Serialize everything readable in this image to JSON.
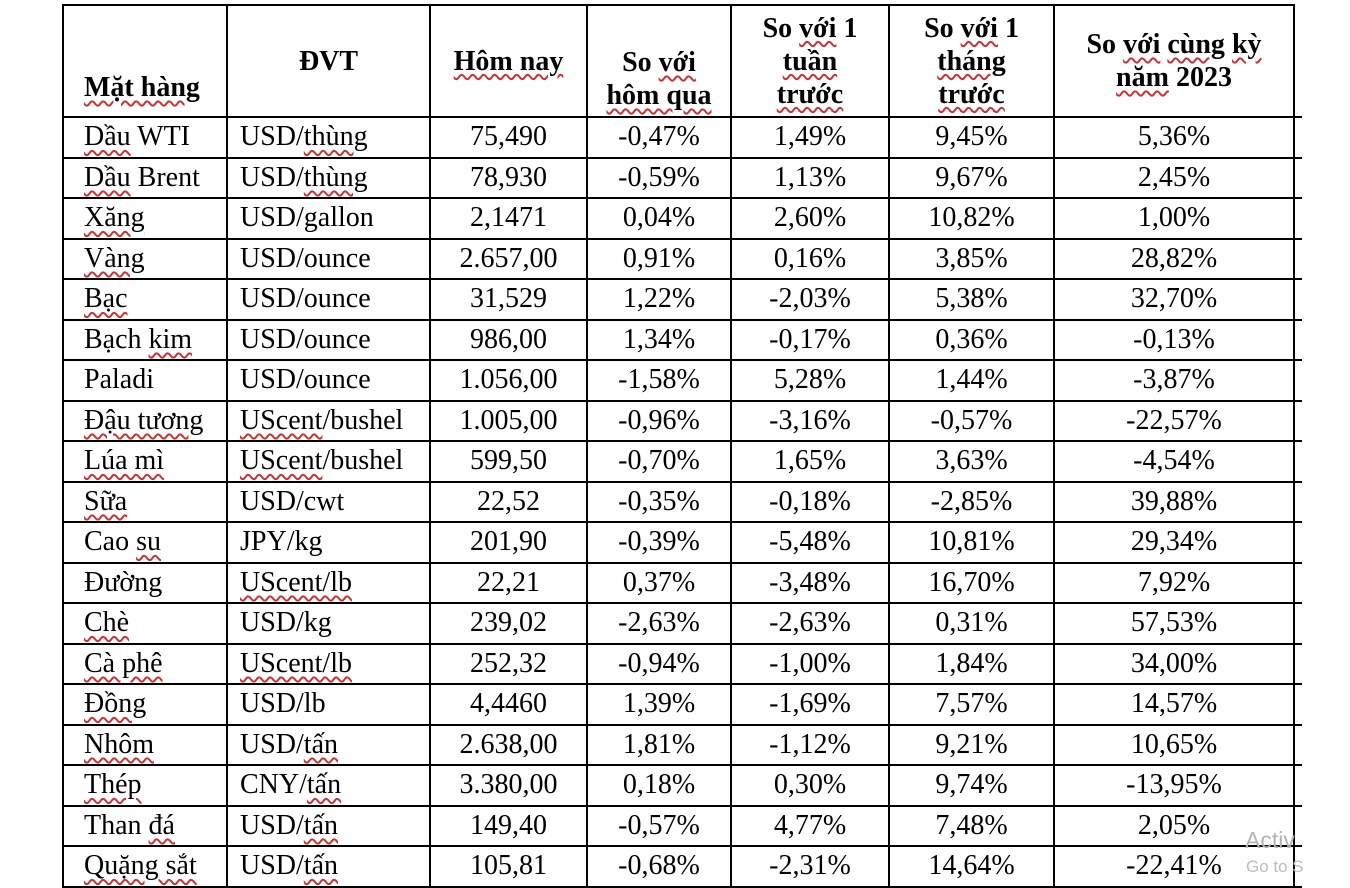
{
  "table": {
    "headers": [
      {
        "lines": [
          "Mặt hàng"
        ],
        "sq": [
          "Mặt hàng"
        ]
      },
      {
        "lines": [
          "ĐVT"
        ],
        "sq": []
      },
      {
        "lines": [
          "Hôm nay"
        ],
        "sq": [
          "Hôm nay"
        ]
      },
      {
        "lines": [
          "So với",
          "hôm qua"
        ],
        "sq": [
          "với",
          "hôm qua"
        ]
      },
      {
        "lines": [
          "So với 1",
          "tuần",
          "trước"
        ],
        "sq": [
          "với",
          "tuần",
          "trước"
        ]
      },
      {
        "lines": [
          "So với 1",
          "tháng",
          "trước"
        ],
        "sq": [
          "với",
          "tháng",
          "trước"
        ]
      },
      {
        "lines": [
          "So với cùng kỳ",
          "năm 2023"
        ],
        "sq": [
          "với",
          "cùng",
          "kỳ",
          "năm"
        ]
      }
    ],
    "rows": [
      {
        "name": {
          "text": "Dầu WTI",
          "sq": [
            "Dầu"
          ]
        },
        "unit": {
          "text": "USD/thùng",
          "sq": [
            "thùng"
          ]
        },
        "values": [
          "75,490",
          "-0,47%",
          "1,49%",
          "9,45%",
          "5,36%"
        ]
      },
      {
        "name": {
          "text": "Dầu Brent",
          "sq": [
            "Dầu"
          ]
        },
        "unit": {
          "text": "USD/thùng",
          "sq": [
            "thùng"
          ]
        },
        "values": [
          "78,930",
          "-0,59%",
          "1,13%",
          "9,67%",
          "2,45%"
        ]
      },
      {
        "name": {
          "text": "Xăng",
          "sq": [
            "Xăng"
          ]
        },
        "unit": {
          "text": "USD/gallon",
          "sq": []
        },
        "values": [
          "2,1471",
          "0,04%",
          "2,60%",
          "10,82%",
          "1,00%"
        ]
      },
      {
        "name": {
          "text": "Vàng",
          "sq": [
            "Vàng"
          ]
        },
        "unit": {
          "text": "USD/ounce",
          "sq": []
        },
        "values": [
          "2.657,00",
          "0,91%",
          "0,16%",
          "3,85%",
          "28,82%"
        ]
      },
      {
        "name": {
          "text": "Bạc",
          "sq": [
            "Bạc"
          ]
        },
        "unit": {
          "text": "USD/ounce",
          "sq": []
        },
        "values": [
          "31,529",
          "1,22%",
          "-2,03%",
          "5,38%",
          "32,70%"
        ]
      },
      {
        "name": {
          "text": "Bạch kim",
          "sq": [
            "kim"
          ]
        },
        "unit": {
          "text": "USD/ounce",
          "sq": []
        },
        "values": [
          "986,00",
          "1,34%",
          "-0,17%",
          "0,36%",
          "-0,13%"
        ]
      },
      {
        "name": {
          "text": "Paladi",
          "sq": []
        },
        "unit": {
          "text": "USD/ounce",
          "sq": []
        },
        "values": [
          "1.056,00",
          "-1,58%",
          "5,28%",
          "1,44%",
          "-3,87%"
        ]
      },
      {
        "name": {
          "text": "Đậu tương",
          "sq": [
            "Đậu tương"
          ]
        },
        "unit": {
          "text": "UScent/bushel",
          "sq": [
            "UScent"
          ]
        },
        "values": [
          "1.005,00",
          "-0,96%",
          "-3,16%",
          "-0,57%",
          "-22,57%"
        ]
      },
      {
        "name": {
          "text": "Lúa mì",
          "sq": [
            "Lúa mì"
          ]
        },
        "unit": {
          "text": "UScent/bushel",
          "sq": [
            "UScent"
          ]
        },
        "values": [
          "599,50",
          "-0,70%",
          "1,65%",
          "3,63%",
          "-4,54%"
        ]
      },
      {
        "name": {
          "text": "Sữa",
          "sq": [
            "Sữa"
          ]
        },
        "unit": {
          "text": "USD/cwt",
          "sq": []
        },
        "values": [
          "22,52",
          "-0,35%",
          "-0,18%",
          "-2,85%",
          "39,88%"
        ]
      },
      {
        "name": {
          "text": "Cao su",
          "sq": [
            "su"
          ]
        },
        "unit": {
          "text": "JPY/kg",
          "sq": []
        },
        "values": [
          "201,90",
          "-0,39%",
          "-5,48%",
          "10,81%",
          "29,34%"
        ]
      },
      {
        "name": {
          "text": "Đường",
          "sq": []
        },
        "unit": {
          "text": "UScent/lb",
          "sq": [
            "UScent/lb"
          ]
        },
        "values": [
          "22,21",
          "0,37%",
          "-3,48%",
          "16,70%",
          "7,92%"
        ]
      },
      {
        "name": {
          "text": "Chè",
          "sq": [
            "Chè"
          ]
        },
        "unit": {
          "text": "USD/kg",
          "sq": []
        },
        "values": [
          "239,02",
          "-2,63%",
          "-2,63%",
          "0,31%",
          "57,53%"
        ]
      },
      {
        "name": {
          "text": "Cà phê",
          "sq": [
            "Cà phê"
          ]
        },
        "unit": {
          "text": "UScent/lb",
          "sq": [
            "UScent/lb"
          ]
        },
        "values": [
          "252,32",
          "-0,94%",
          "-1,00%",
          "1,84%",
          "34,00%"
        ]
      },
      {
        "name": {
          "text": "Đồng",
          "sq": [
            "Đồng"
          ]
        },
        "unit": {
          "text": "USD/lb",
          "sq": []
        },
        "values": [
          "4,4460",
          "1,39%",
          "-1,69%",
          "7,57%",
          "14,57%"
        ]
      },
      {
        "name": {
          "text": "Nhôm",
          "sq": [
            "Nhôm"
          ]
        },
        "unit": {
          "text": "USD/tấn",
          "sq": [
            "tấn"
          ]
        },
        "values": [
          "2.638,00",
          "1,81%",
          "-1,12%",
          "9,21%",
          "10,65%"
        ]
      },
      {
        "name": {
          "text": "Thép",
          "sq": [
            "Thép"
          ]
        },
        "unit": {
          "text": "CNY/tấn",
          "sq": [
            "tấn"
          ]
        },
        "values": [
          "3.380,00",
          "0,18%",
          "0,30%",
          "9,74%",
          "-13,95%"
        ]
      },
      {
        "name": {
          "text": "Than đá",
          "sq": [
            "đá"
          ]
        },
        "unit": {
          "text": "USD/tấn",
          "sq": [
            "tấn"
          ]
        },
        "values": [
          "149,40",
          "-0,57%",
          "4,77%",
          "7,48%",
          "2,05%"
        ]
      },
      {
        "name": {
          "text": "Quặng sắt",
          "sq": [
            "Quặng sắt"
          ]
        },
        "unit": {
          "text": "USD/tấn",
          "sq": [
            "tấn"
          ]
        },
        "values": [
          "105,81",
          "-0,68%",
          "-2,31%",
          "14,64%",
          "-22,41%"
        ]
      }
    ]
  },
  "watermark": {
    "line1": "Activ",
    "line2": "Go to S"
  },
  "colors": {
    "border": "#000000",
    "squiggle": "#cc3333",
    "watermark": "#b3b3b3"
  }
}
